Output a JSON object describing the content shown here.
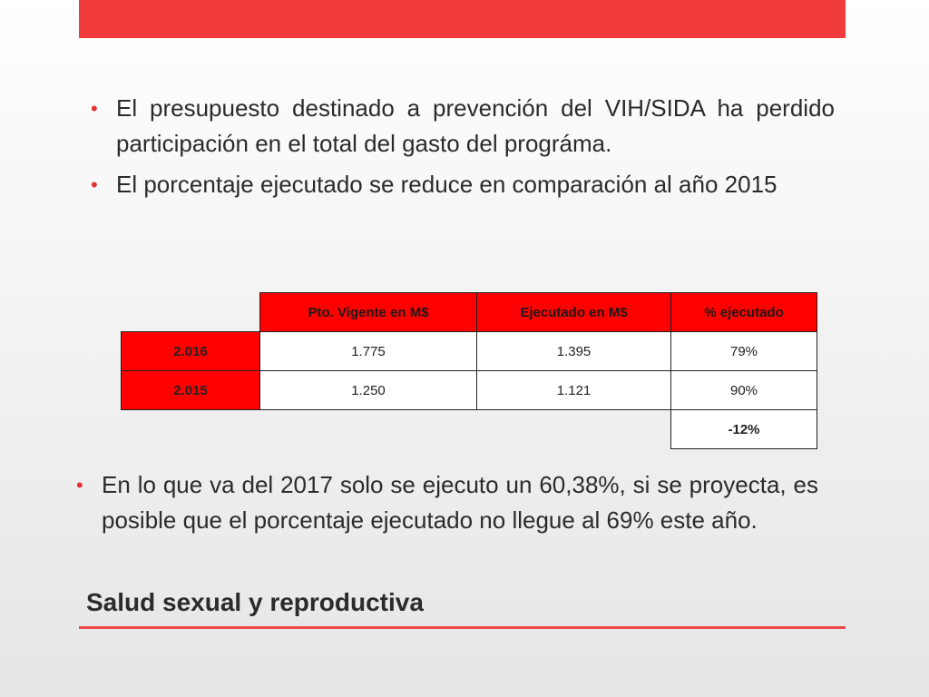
{
  "bullets_top": [
    "El presupuesto destinado a prevención del VIH/SIDA ha perdido participación en el total del gasto del prográma.",
    "El porcentaje ejecutado se reduce en comparación al año 2015"
  ],
  "table": {
    "headers": [
      "Pto. Vigente en M$",
      "Ejecutado en M$",
      "% ejecutado"
    ],
    "rows": [
      {
        "year": "2.016",
        "vigente": "1.775",
        "ejecutado": "1.395",
        "pct": "79%"
      },
      {
        "year": "2.015",
        "vigente": "1.250",
        "ejecutado": "1.121",
        "pct": "90%"
      }
    ],
    "difference": "-12%"
  },
  "bullets_bottom": [
    "En lo que va del 2017 solo se ejecuto un 60,38%, si se proyecta, es posible que el porcentaje ejecutado no llegue al 69% este año."
  ],
  "footer": {
    "title": "Salud sexual y reproductiva"
  },
  "colors": {
    "accent": "#f23c3c",
    "table_header": "#ff0000"
  }
}
